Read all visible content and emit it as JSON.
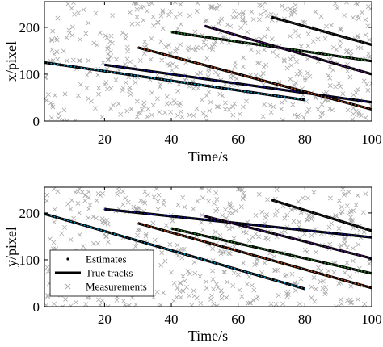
{
  "chart_data": [
    {
      "type": "scatter",
      "id": "x",
      "xlabel": "Time/s",
      "ylabel": "x/pixel",
      "xlim": [
        2,
        100
      ],
      "ylim": [
        0,
        255
      ],
      "xticks": [
        20,
        40,
        60,
        80,
        100
      ],
      "yticks": [
        0,
        100,
        200
      ],
      "xtick_labels": [
        "20",
        "40",
        "60",
        "80",
        "100"
      ],
      "ytick_labels": [
        "0",
        "100",
        "200"
      ],
      "grid": false,
      "tracks": [
        {
          "t": [
            2,
            80
          ],
          "y": [
            125,
            45
          ],
          "est_color": "#00a0d8"
        },
        {
          "t": [
            20,
            100
          ],
          "y": [
            120,
            40
          ],
          "est_color": "#1515a8"
        },
        {
          "t": [
            30,
            100
          ],
          "y": [
            157,
            25
          ],
          "est_color": "#d95319"
        },
        {
          "t": [
            40,
            100
          ],
          "y": [
            190,
            128
          ],
          "est_color": "#2e9e2e"
        },
        {
          "t": [
            50,
            100
          ],
          "y": [
            203,
            100
          ],
          "est_color": "#6a1b9a"
        },
        {
          "t": [
            70,
            100
          ],
          "y": [
            222,
            163
          ],
          "est_color": "#3a3a3a"
        }
      ],
      "clutter_count": 520,
      "clutter_seed": 11
    },
    {
      "type": "scatter",
      "id": "y",
      "xlabel": "Time/s",
      "ylabel": "y/pixel",
      "xlim": [
        2,
        100
      ],
      "ylim": [
        0,
        255
      ],
      "xticks": [
        20,
        40,
        60,
        80,
        100
      ],
      "yticks": [
        0,
        100,
        200
      ],
      "xtick_labels": [
        "20",
        "40",
        "60",
        "80",
        "100"
      ],
      "ytick_labels": [
        "0",
        "100",
        "200"
      ],
      "grid": false,
      "legend": {
        "placement": "bottom-left",
        "entries": [
          {
            "label": "Estimates",
            "marker": "dot"
          },
          {
            "label": "True tracks",
            "marker": "line"
          },
          {
            "label": "Measurements",
            "marker": "cross"
          }
        ]
      },
      "tracks": [
        {
          "t": [
            2,
            80
          ],
          "y": [
            198,
            38
          ],
          "est_color": "#00a0d8"
        },
        {
          "t": [
            20,
            100
          ],
          "y": [
            208,
            148
          ],
          "est_color": "#1515a8"
        },
        {
          "t": [
            30,
            100
          ],
          "y": [
            178,
            40
          ],
          "est_color": "#d95319"
        },
        {
          "t": [
            40,
            100
          ],
          "y": [
            167,
            71
          ],
          "est_color": "#2e9e2e"
        },
        {
          "t": [
            50,
            100
          ],
          "y": [
            193,
            103
          ],
          "est_color": "#6a1b9a"
        },
        {
          "t": [
            70,
            100
          ],
          "y": [
            228,
            162
          ],
          "est_color": "#3a3a3a"
        }
      ],
      "clutter_count": 520,
      "clutter_seed": 29
    }
  ],
  "style": {
    "clutter_color": "#a8a8a8",
    "track_color": "#000000",
    "axis_color": "#000000"
  }
}
